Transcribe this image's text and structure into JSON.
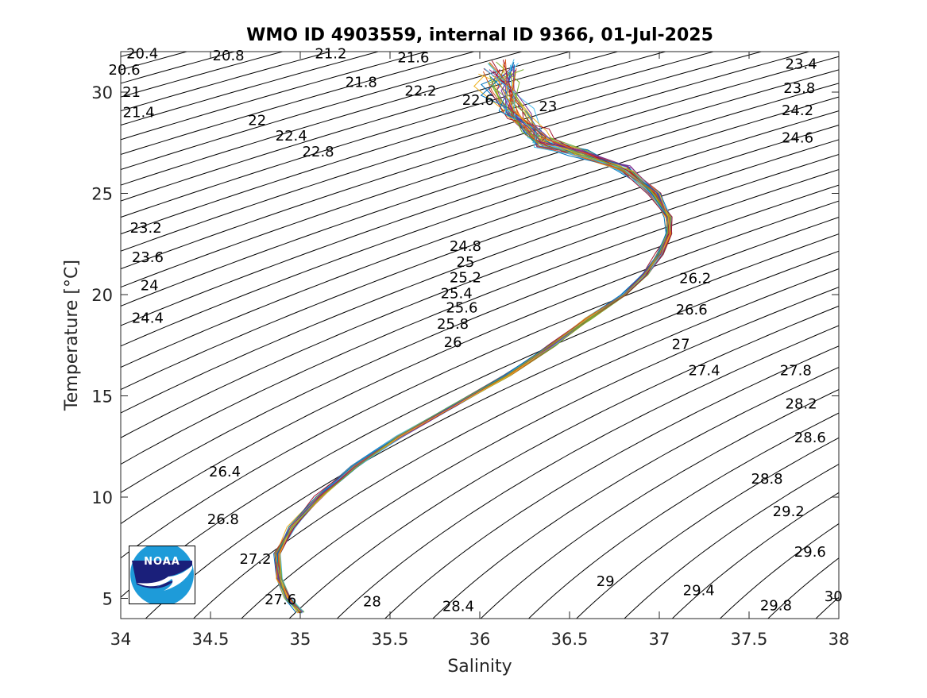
{
  "chart_data": {
    "type": "line",
    "title": "WMO ID 4903559, internal ID 9366, 01-Jul-2025",
    "xlabel": "Salinity",
    "ylabel": "Temperature [°C]",
    "xlim": [
      34,
      38
    ],
    "ylim": [
      4,
      32
    ],
    "xticks": [
      "34",
      "34.5",
      "35",
      "35.5",
      "36",
      "36.5",
      "37",
      "37.5",
      "38"
    ],
    "yticks": [
      "5",
      "10",
      "15",
      "20",
      "25",
      "30"
    ],
    "grid": false,
    "legend": "none",
    "contour_step": 0.2,
    "contour_labels": [
      {
        "text": "20.4",
        "s": 34.12,
        "t": 31.9
      },
      {
        "text": "20.6",
        "s": 34.02,
        "t": 31.1
      },
      {
        "text": "20.8",
        "s": 34.6,
        "t": 31.8
      },
      {
        "text": "21",
        "s": 34.06,
        "t": 30.0
      },
      {
        "text": "21.2",
        "s": 35.17,
        "t": 31.9
      },
      {
        "text": "21.4",
        "s": 34.1,
        "t": 29.0
      },
      {
        "text": "21.6",
        "s": 35.63,
        "t": 31.7
      },
      {
        "text": "21.8",
        "s": 35.34,
        "t": 30.5
      },
      {
        "text": "22",
        "s": 34.76,
        "t": 28.6
      },
      {
        "text": "22.2",
        "s": 35.67,
        "t": 30.05
      },
      {
        "text": "22.4",
        "s": 34.95,
        "t": 27.85
      },
      {
        "text": "22.6",
        "s": 35.99,
        "t": 29.6
      },
      {
        "text": "22.8",
        "s": 35.1,
        "t": 27.05
      },
      {
        "text": "23",
        "s": 36.38,
        "t": 29.3
      },
      {
        "text": "23.2",
        "s": 34.14,
        "t": 23.3
      },
      {
        "text": "23.4",
        "s": 37.79,
        "t": 31.4
      },
      {
        "text": "23.6",
        "s": 34.15,
        "t": 21.85
      },
      {
        "text": "23.8",
        "s": 37.78,
        "t": 30.2
      },
      {
        "text": "24",
        "s": 34.16,
        "t": 20.45
      },
      {
        "text": "24.2",
        "s": 37.77,
        "t": 29.1
      },
      {
        "text": "24.4",
        "s": 34.15,
        "t": 18.85
      },
      {
        "text": "24.6",
        "s": 37.77,
        "t": 27.75
      },
      {
        "text": "24.8",
        "s": 35.92,
        "t": 22.4
      },
      {
        "text": "25",
        "s": 35.92,
        "t": 21.6
      },
      {
        "text": "25.2",
        "s": 35.92,
        "t": 20.85
      },
      {
        "text": "25.4",
        "s": 35.87,
        "t": 20.05
      },
      {
        "text": "25.6",
        "s": 35.9,
        "t": 19.35
      },
      {
        "text": "25.8",
        "s": 35.85,
        "t": 18.55
      },
      {
        "text": "26",
        "s": 35.85,
        "t": 17.65
      },
      {
        "text": "26.2",
        "s": 37.2,
        "t": 20.8
      },
      {
        "text": "26.4",
        "s": 34.58,
        "t": 11.25
      },
      {
        "text": "26.6",
        "s": 37.18,
        "t": 19.25
      },
      {
        "text": "26.8",
        "s": 34.57,
        "t": 8.9
      },
      {
        "text": "27",
        "s": 37.12,
        "t": 17.55
      },
      {
        "text": "27.2",
        "s": 34.75,
        "t": 6.95
      },
      {
        "text": "27.4",
        "s": 37.25,
        "t": 16.25
      },
      {
        "text": "27.6",
        "s": 34.89,
        "t": 4.95
      },
      {
        "text": "27.8",
        "s": 37.76,
        "t": 16.25
      },
      {
        "text": "28",
        "s": 35.4,
        "t": 4.85
      },
      {
        "text": "28.2",
        "s": 37.79,
        "t": 14.6
      },
      {
        "text": "28.4",
        "s": 35.88,
        "t": 4.6
      },
      {
        "text": "28.6",
        "s": 37.84,
        "t": 12.95
      },
      {
        "text": "28.8",
        "s": 37.6,
        "t": 10.9
      },
      {
        "text": "29",
        "s": 36.7,
        "t": 5.85
      },
      {
        "text": "29.2",
        "s": 37.72,
        "t": 9.3
      },
      {
        "text": "29.4",
        "s": 37.22,
        "t": 5.4
      },
      {
        "text": "29.6",
        "s": 37.84,
        "t": 7.3
      },
      {
        "text": "29.8",
        "s": 37.65,
        "t": 4.65
      },
      {
        "text": "30",
        "s": 37.97,
        "t": 5.1
      }
    ],
    "profile_mean": {
      "s": [
        36.12,
        36.1,
        36.2,
        36.3,
        36.35,
        36.55,
        36.8,
        36.97,
        37.05,
        37.05,
        37.0,
        36.92,
        36.8,
        36.6,
        36.4,
        36.15,
        35.85,
        35.55,
        35.3,
        35.1,
        34.95,
        34.87,
        34.88,
        34.93,
        35.0
      ],
      "t": [
        31.2,
        30.2,
        29.0,
        28.0,
        27.5,
        27.0,
        26.2,
        25.0,
        23.8,
        23.0,
        22.0,
        21.0,
        20.0,
        18.8,
        17.5,
        16.0,
        14.5,
        13.0,
        11.5,
        10.0,
        8.5,
        7.2,
        6.0,
        5.0,
        4.3
      ]
    },
    "profile_count": 40,
    "series": [
      {
        "color": "#0072bd"
      },
      {
        "color": "#d95319"
      },
      {
        "color": "#edb120"
      },
      {
        "color": "#7e2f8e"
      },
      {
        "color": "#77ac30"
      },
      {
        "color": "#4dbeee"
      },
      {
        "color": "#a2142f"
      }
    ]
  },
  "logo": {
    "text": "NOAA",
    "colors": {
      "dark": "#1a1f7a",
      "light": "#1e9bd9"
    }
  }
}
